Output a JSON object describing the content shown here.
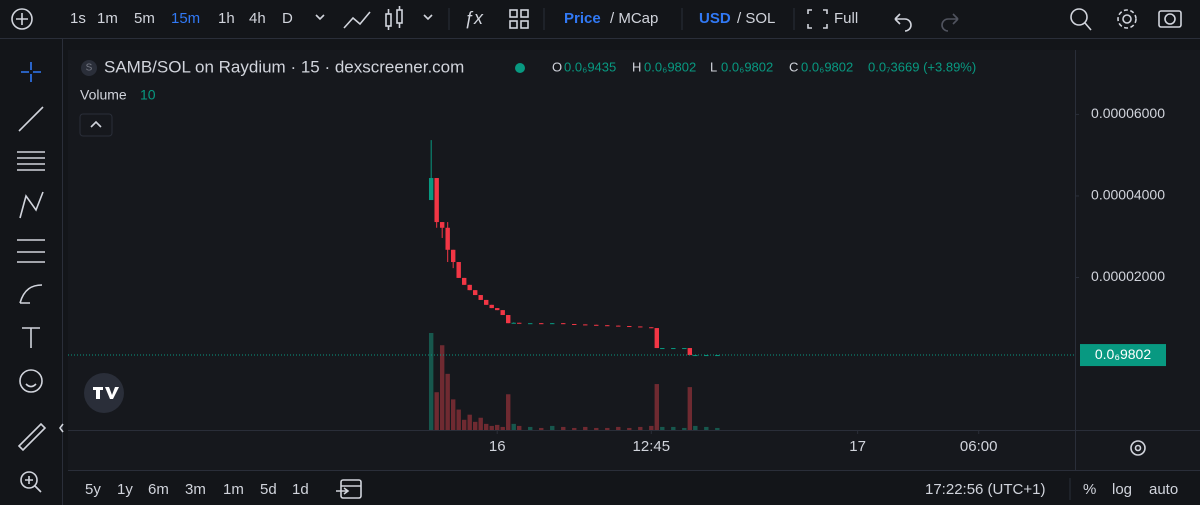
{
  "toolbar": {
    "intervals": [
      "1s",
      "1m",
      "5m",
      "15m",
      "1h",
      "4h",
      "D"
    ],
    "active_interval": "15m",
    "price": "Price",
    "mcap": "/ MCap",
    "usd": "USD",
    "sol": "/ SOL",
    "full": "Full"
  },
  "legend": {
    "symbol_icon": "S",
    "symbol": "SAMB/SOL on Raydium · 15 · dexscreener.com",
    "o_label": "O",
    "o": "0.0₆9435",
    "h_label": "H",
    "h": "0.0₆9802",
    "l_label": "L",
    "l": "0.0₆9802",
    "c_label": "C",
    "c": "0.0₆9802",
    "change": "0.0₇3669 (+3.89%)",
    "volume_label": "Volume",
    "volume": "10"
  },
  "chart_data": {
    "type": "candlestick",
    "up_color": "#089981",
    "down_color": "#f23645",
    "up_volume_color": "#17574d",
    "down_volume_color": "#6f2a31",
    "x": [
      66,
      67,
      68,
      69,
      70,
      71,
      72,
      73,
      74,
      75,
      76,
      77,
      78,
      79,
      80,
      81,
      82,
      84,
      86,
      88,
      90,
      92,
      94,
      96,
      98,
      100,
      102,
      104,
      106,
      107,
      108,
      110,
      112,
      113,
      114,
      116,
      118
    ],
    "open": [
      3.9e-05,
      4.44e-05,
      3.36e-05,
      3.22e-05,
      2.68e-05,
      2.38e-05,
      1.99e-05,
      1.82e-05,
      1.69e-05,
      1.57e-05,
      1.45e-05,
      1.33e-05,
      1.25e-05,
      1.2e-05,
      1.08e-05,
      8.8e-06,
      8.9e-06,
      8.8e-06,
      8.8e-06,
      8.7e-06,
      8.8e-06,
      8.6e-06,
      8.5e-06,
      8.4e-06,
      8.3e-06,
      8.2e-06,
      8.1e-06,
      8e-06,
      7.8e-06,
      7.6e-06,
      2.7e-06,
      2.7e-06,
      2.7e-06,
      2.7e-06,
      9.8e-07,
      9.8e-07,
      9.8e-07
    ],
    "high": [
      5.37e-05,
      4.44e-05,
      3.36e-05,
      3.36e-05,
      2.68e-05,
      2.38e-05,
      1.99e-05,
      1.82e-05,
      1.69e-05,
      1.57e-05,
      1.45e-05,
      1.33e-05,
      1.25e-05,
      1.2e-05,
      1.08e-05,
      9e-06,
      8.9e-06,
      8.8e-06,
      8.8e-06,
      8.8e-06,
      8.8e-06,
      8.6e-06,
      8.5e-06,
      8.4e-06,
      8.3e-06,
      8.2e-06,
      8.1e-06,
      8e-06,
      7.8e-06,
      7.6e-06,
      2.7e-06,
      2.7e-06,
      2.7e-06,
      2.7e-06,
      9.8e-07,
      9.8e-07,
      9.8e-07
    ],
    "low": [
      3.9e-05,
      3.22e-05,
      2.97e-05,
      2.38e-05,
      2.23e-05,
      1.99e-05,
      1.82e-05,
      1.69e-05,
      1.57e-05,
      1.45e-05,
      1.33e-05,
      1.25e-05,
      1.2e-05,
      1.08e-05,
      8.8e-06,
      8.8e-06,
      8.8e-06,
      8.8e-06,
      8.7e-06,
      8.7e-06,
      8.6e-06,
      8.5e-06,
      8.4e-06,
      8.3e-06,
      8.2e-06,
      8.1e-06,
      8e-06,
      7.8e-06,
      7.6e-06,
      2.7e-06,
      2.7e-06,
      2.7e-06,
      2.7e-06,
      9.8e-07,
      9.8e-07,
      9.8e-07,
      9.8e-07
    ],
    "close": [
      4.44e-05,
      3.36e-05,
      3.22e-05,
      2.68e-05,
      2.38e-05,
      1.99e-05,
      1.82e-05,
      1.69e-05,
      1.57e-05,
      1.45e-05,
      1.33e-05,
      1.25e-05,
      1.2e-05,
      1.08e-05,
      8.8e-06,
      8.9e-06,
      8.8e-06,
      8.8e-06,
      8.7e-06,
      8.8e-06,
      8.6e-06,
      8.5e-06,
      8.4e-06,
      8.3e-06,
      8.2e-06,
      8.1e-06,
      8e-06,
      7.8e-06,
      7.6e-06,
      2.7e-06,
      2.7e-06,
      2.7e-06,
      2.7e-06,
      9.8e-07,
      9.8e-07,
      9.8e-07,
      9.8e-07
    ],
    "volume": [
      95,
      37,
      83,
      55,
      30,
      20,
      10,
      15,
      8,
      12,
      6,
      4,
      5,
      3,
      35,
      6,
      4,
      3,
      2,
      4,
      3,
      2,
      3,
      2,
      2,
      3,
      2,
      3,
      4,
      45,
      3,
      3,
      2,
      42,
      4,
      3,
      2
    ],
    "xlim": [
      0,
      183
    ],
    "xticks": [
      {
        "value": 78,
        "label": "16"
      },
      {
        "value": 106,
        "label": "12:45"
      },
      {
        "value": 143.5,
        "label": "17"
      },
      {
        "value": 165.5,
        "label": "06:00"
      }
    ],
    "ylim": [
      -1.74e-05,
      7.58e-05
    ],
    "yticks": [
      {
        "value": 2e-05,
        "label": "0.00002000"
      },
      {
        "value": 4e-05,
        "label": "0.00004000"
      },
      {
        "value": 6e-05,
        "label": "0.00006000"
      }
    ],
    "last_price": {
      "value": 9.802e-07,
      "label": "0.0₆9802"
    }
  },
  "bottom_bar": {
    "ranges": [
      "5y",
      "1y",
      "6m",
      "3m",
      "1m",
      "5d",
      "1d"
    ],
    "clock": "17:22:56 (UTC+1)",
    "percent": "%",
    "log": "log",
    "auto": "auto"
  }
}
